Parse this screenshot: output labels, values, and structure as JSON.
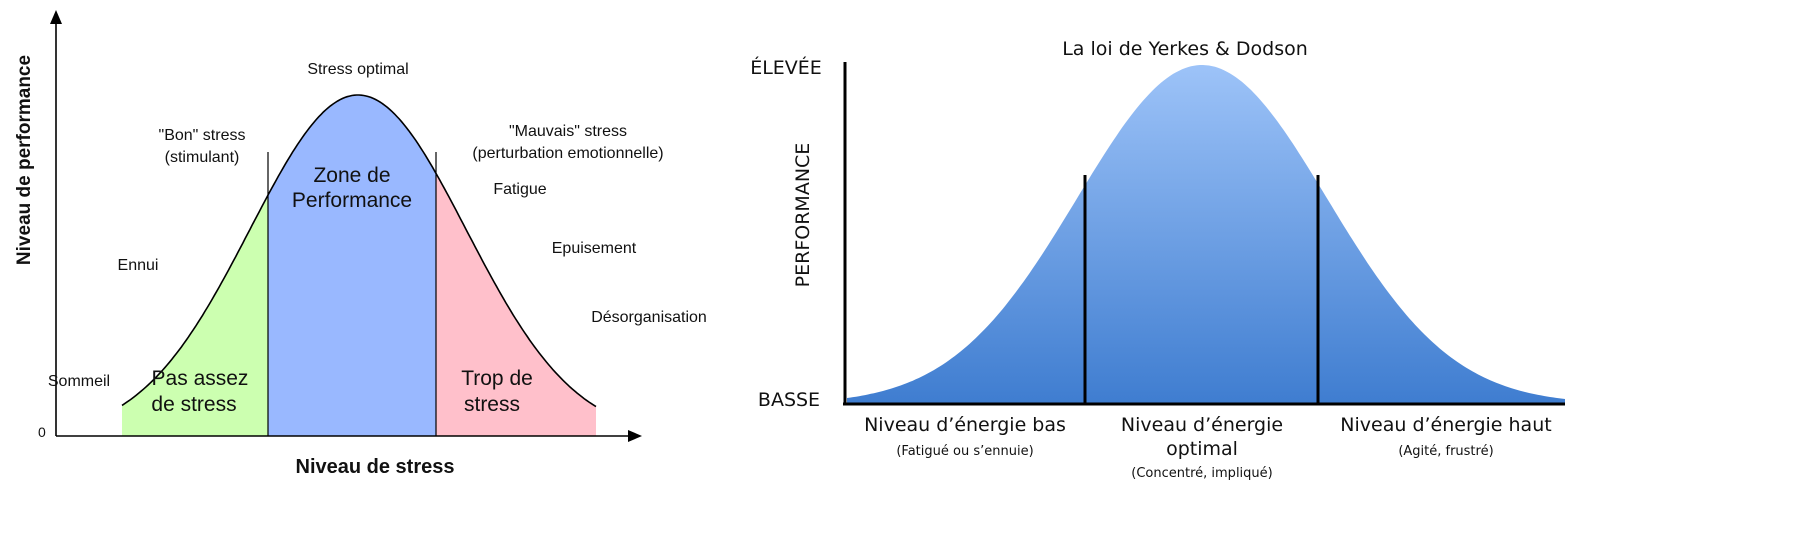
{
  "left_diagram": {
    "y_axis_label": "Niveau de performance",
    "x_axis_label": "Niveau de stress",
    "zero_label": "0",
    "peak_label": "Stress optimal",
    "good_stress": [
      "\"Bon\" stress",
      "(stimulant)"
    ],
    "bad_stress": [
      "\"Mauvais\" stress",
      "(perturbation emotionnelle)"
    ],
    "left_side_labels": {
      "sommeil": "Sommeil",
      "ennui": "Ennui"
    },
    "right_side_labels": {
      "fatigue": "Fatigue",
      "epuisement": "Epuisement",
      "desorganisation": "Désorganisation"
    },
    "zones": [
      {
        "label_lines": [
          "Pas assez",
          "de stress"
        ],
        "color": "#ccffb0"
      },
      {
        "label_lines": [
          "Zone de",
          "Performance"
        ],
        "color": "#99b8ff"
      },
      {
        "label_lines": [
          "Trop de",
          "stress"
        ],
        "color": "#ffc0cb"
      }
    ],
    "colors": {
      "axis": "#000000",
      "outline": "#000000"
    }
  },
  "right_diagram": {
    "title": "La loi de Yerkes & Dodson",
    "y_axis_label": "PERFORMANCE",
    "y_high_label": "ÉLEVÉE",
    "y_low_label": "BASSE",
    "zones": [
      {
        "title_lines": [
          "Niveau d’énergie bas"
        ],
        "subtitle": "(Fatigué ou s’ennuie)"
      },
      {
        "title_lines": [
          "Niveau d’énergie",
          "optimal"
        ],
        "subtitle": "(Concentré, impliqué)"
      },
      {
        "title_lines": [
          "Niveau d’énergie haut"
        ],
        "subtitle": "(Agité, frustré)"
      }
    ],
    "colors": {
      "curve_top": "#9dc3f8",
      "curve_bottom": "#3f7dd0",
      "axis": "#000000"
    }
  }
}
